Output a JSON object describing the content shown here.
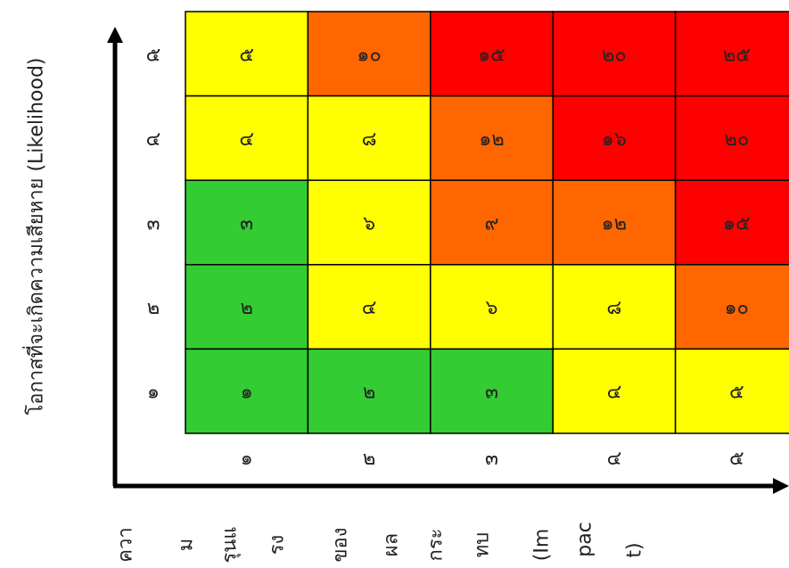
{
  "chart_data": {
    "type": "heatmap",
    "ylabel": "โอกาสที่จะเกิดความเสียหาย (Likelihood)",
    "xlabel_fragments": [
      "ควา",
      "ม",
      "รุนแ",
      "รง",
      "ของ",
      "ผล",
      "กระ",
      "ทบ",
      "(Im",
      "pac",
      "t)"
    ],
    "x_categories": [
      "๑",
      "๒",
      "๓",
      "๔",
      "๕"
    ],
    "y_categories": [
      "๑",
      "๒",
      "๓",
      "๔",
      "๕"
    ],
    "rows": [
      {
        "y": "๕",
        "cells": [
          {
            "label": "๕",
            "value": 5,
            "color": "#ffff00"
          },
          {
            "label": "๑๐",
            "value": 10,
            "color": "#ff6600"
          },
          {
            "label": "๑๕",
            "value": 15,
            "color": "#ff0000"
          },
          {
            "label": "๒๐",
            "value": 20,
            "color": "#ff0000"
          },
          {
            "label": "๒๕",
            "value": 25,
            "color": "#ff0000"
          }
        ]
      },
      {
        "y": "๔",
        "cells": [
          {
            "label": "๔",
            "value": 4,
            "color": "#ffff00"
          },
          {
            "label": "๘",
            "value": 8,
            "color": "#ffff00"
          },
          {
            "label": "๑๒",
            "value": 12,
            "color": "#ff6600"
          },
          {
            "label": "๑๖",
            "value": 16,
            "color": "#ff0000"
          },
          {
            "label": "๒๐",
            "value": 20,
            "color": "#ff0000"
          }
        ]
      },
      {
        "y": "๓",
        "cells": [
          {
            "label": "๓",
            "value": 3,
            "color": "#33cc33"
          },
          {
            "label": "๖",
            "value": 6,
            "color": "#ffff00"
          },
          {
            "label": "๙",
            "value": 9,
            "color": "#ff6600"
          },
          {
            "label": "๑๒",
            "value": 12,
            "color": "#ff6600"
          },
          {
            "label": "๑๕",
            "value": 15,
            "color": "#ff0000"
          }
        ]
      },
      {
        "y": "๒",
        "cells": [
          {
            "label": "๒",
            "value": 2,
            "color": "#33cc33"
          },
          {
            "label": "๔",
            "value": 4,
            "color": "#ffff00"
          },
          {
            "label": "๖",
            "value": 6,
            "color": "#ffff00"
          },
          {
            "label": "๘",
            "value": 8,
            "color": "#ffff00"
          },
          {
            "label": "๑๐",
            "value": 10,
            "color": "#ff6600"
          }
        ]
      },
      {
        "y": "๑",
        "cells": [
          {
            "label": "๑",
            "value": 1,
            "color": "#33cc33"
          },
          {
            "label": "๒",
            "value": 2,
            "color": "#33cc33"
          },
          {
            "label": "๓",
            "value": 3,
            "color": "#33cc33"
          },
          {
            "label": "๔",
            "value": 4,
            "color": "#ffff00"
          },
          {
            "label": "๕",
            "value": 5,
            "color": "#ffff00"
          }
        ]
      }
    ]
  }
}
